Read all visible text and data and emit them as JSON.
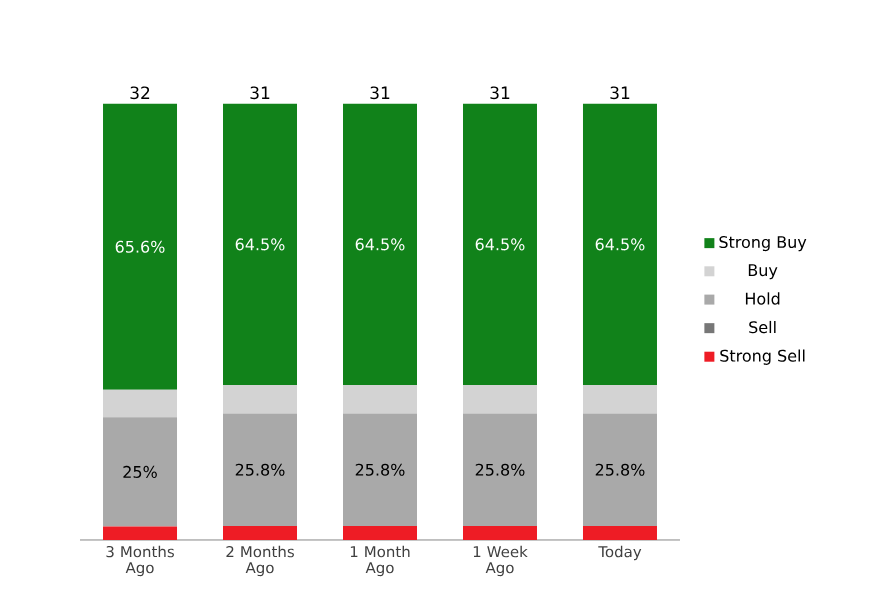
{
  "chart_data": {
    "type": "bar",
    "stacked": true,
    "legend": "right",
    "categories": [
      "3 Months Ago",
      "2 Months Ago",
      "1 Month Ago",
      "1 Week Ago",
      "Today"
    ],
    "series": [
      {
        "name": "Strong Sell",
        "color": "#ee1c25",
        "values": [
          3.1,
          3.2,
          3.2,
          3.2,
          3.2
        ]
      },
      {
        "name": "Sell",
        "color": "#777777",
        "values": [
          0,
          0,
          0,
          0,
          0
        ]
      },
      {
        "name": "Hold",
        "color": "#a9a9a9",
        "values": [
          25,
          25.8,
          25.8,
          25.8,
          25.8
        ],
        "value_labels": [
          "25%",
          "25.8%",
          "25.8%",
          "25.8%",
          "25.8%"
        ]
      },
      {
        "name": "Buy",
        "color": "#d3d3d3",
        "values": [
          6.3,
          6.5,
          6.5,
          6.5,
          6.5
        ]
      },
      {
        "name": "Strong Buy",
        "color": "#11821a",
        "values": [
          65.6,
          64.5,
          64.5,
          64.5,
          64.5
        ],
        "value_labels": [
          "65.6%",
          "64.5%",
          "64.5%",
          "64.5%",
          "64.5%"
        ]
      }
    ],
    "annotations": [
      {
        "text": "32",
        "x": "3 Months Ago",
        "y": 100
      },
      {
        "text": "31",
        "x": "2 Months Ago",
        "y": 100
      },
      {
        "text": "31",
        "x": "1 Month Ago",
        "y": 100
      },
      {
        "text": "31",
        "x": "1 Week Ago",
        "y": 100
      },
      {
        "text": "31",
        "x": "Today",
        "y": 100
      }
    ]
  }
}
